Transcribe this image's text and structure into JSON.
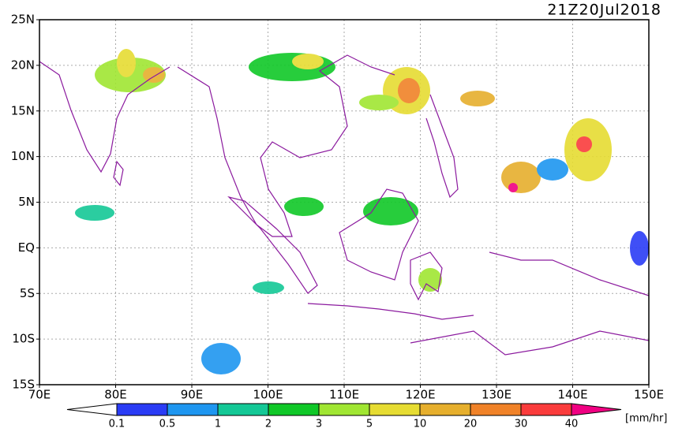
{
  "map_data": {
    "title": "21Z20Jul2018",
    "lat_ticks": [
      {
        "value": 25,
        "label": "25N"
      },
      {
        "value": 20,
        "label": "20N"
      },
      {
        "value": 15,
        "label": "15N"
      },
      {
        "value": 10,
        "label": "10N"
      },
      {
        "value": 5,
        "label": "5N"
      },
      {
        "value": 0,
        "label": "EQ"
      },
      {
        "value": -5,
        "label": "5S"
      },
      {
        "value": -10,
        "label": "10S"
      },
      {
        "value": -15,
        "label": "15S"
      }
    ],
    "lon_ticks": [
      {
        "value": 70,
        "label": "70E"
      },
      {
        "value": 80,
        "label": "80E"
      },
      {
        "value": 90,
        "label": "90E"
      },
      {
        "value": 100,
        "label": "100E"
      },
      {
        "value": 110,
        "label": "110E"
      },
      {
        "value": 120,
        "label": "120E"
      },
      {
        "value": 130,
        "label": "130E"
      },
      {
        "value": 140,
        "label": "140E"
      },
      {
        "value": 150,
        "label": "150E"
      }
    ],
    "lat_range": [
      25,
      -15
    ],
    "lon_range": [
      70,
      150
    ],
    "colorbar": {
      "levels": [
        0.1,
        0.5,
        1,
        2,
        3,
        5,
        10,
        20,
        30,
        40
      ],
      "colors": [
        "#2a3cf5",
        "#1e96f0",
        "#14c896",
        "#10c828",
        "#a0e632",
        "#e6dc32",
        "#e6af2d",
        "#f08228",
        "#fa3c3c",
        "#f00082"
      ],
      "unit": "[mm/hr]"
    }
  }
}
